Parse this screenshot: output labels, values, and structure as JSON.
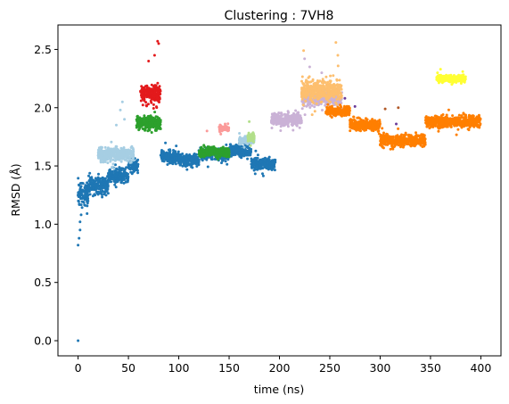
{
  "chart_data": {
    "type": "scatter",
    "title": "Clustering : 7VH8",
    "xlabel": "time (ns)",
    "ylabel": "RMSD (Å)",
    "xlim": [
      -20,
      420
    ],
    "ylim": [
      -0.13,
      2.71
    ],
    "xticks": [
      0,
      50,
      100,
      150,
      200,
      250,
      300,
      350,
      400
    ],
    "yticks": [
      0.0,
      0.5,
      1.0,
      1.5,
      2.0,
      2.5
    ],
    "ytick_labels": [
      "0.0",
      "0.5",
      "1.0",
      "1.5",
      "2.0",
      "2.5"
    ],
    "grid": false,
    "legend": "none",
    "marker_size": 1.5,
    "series": [
      {
        "color": "#1f77b4",
        "segments": [
          [
            0,
            10,
            1.25,
            0.15
          ],
          [
            10,
            30,
            1.33,
            0.12
          ],
          [
            30,
            50,
            1.42,
            0.1
          ],
          [
            50,
            60,
            1.5,
            0.1
          ],
          [
            82,
            100,
            1.58,
            0.09
          ],
          [
            100,
            120,
            1.55,
            0.08
          ],
          [
            120,
            150,
            1.6,
            0.08
          ],
          [
            150,
            172,
            1.63,
            0.08
          ],
          [
            172,
            196,
            1.52,
            0.08
          ]
        ],
        "outliers": [
          [
            0,
            0.0
          ],
          [
            0,
            0.82
          ],
          [
            1,
            0.88
          ],
          [
            2,
            0.95
          ],
          [
            2,
            1.02
          ],
          [
            3,
            1.08
          ]
        ]
      },
      {
        "color": "#a6cee3",
        "segments": [
          [
            20,
            55,
            1.6,
            0.1
          ],
          [
            160,
            175,
            1.72,
            0.05
          ]
        ],
        "outliers": [
          [
            42,
            1.98
          ],
          [
            44,
            2.05
          ],
          [
            46,
            1.9
          ],
          [
            38,
            1.85
          ]
        ]
      },
      {
        "color": "#2ca02c",
        "segments": [
          [
            58,
            82,
            1.87,
            0.1
          ],
          [
            120,
            150,
            1.62,
            0.07
          ]
        ],
        "outliers": []
      },
      {
        "color": "#e31a1c",
        "segments": [
          [
            62,
            82,
            2.12,
            0.13
          ]
        ],
        "outliers": [
          [
            79,
            2.57
          ],
          [
            80,
            2.55
          ],
          [
            76,
            2.45
          ],
          [
            70,
            2.4
          ]
        ]
      },
      {
        "color": "#b2df8a",
        "segments": [
          [
            168,
            175,
            1.75,
            0.06
          ]
        ],
        "outliers": [
          [
            170,
            1.88
          ]
        ]
      },
      {
        "color": "#fb9a99",
        "segments": [
          [
            140,
            150,
            1.82,
            0.04
          ]
        ],
        "outliers": [
          [
            128,
            1.8
          ],
          [
            146,
            1.86
          ]
        ]
      },
      {
        "color": "#cab2d6",
        "segments": [
          [
            192,
            222,
            1.9,
            0.09
          ],
          [
            222,
            262,
            2.08,
            0.1
          ]
        ],
        "outliers": [
          [
            225,
            2.42
          ],
          [
            230,
            2.35
          ],
          [
            242,
            2.3
          ]
        ]
      },
      {
        "color": "#fdbf6f",
        "segments": [
          [
            222,
            262,
            2.15,
            0.14
          ]
        ],
        "outliers": [
          [
            224,
            2.49
          ],
          [
            256,
            2.56
          ],
          [
            258,
            2.45
          ]
        ]
      },
      {
        "color": "#ff7f00",
        "segments": [
          [
            246,
            270,
            1.97,
            0.07
          ],
          [
            270,
            300,
            1.85,
            0.08
          ],
          [
            300,
            345,
            1.72,
            0.08
          ],
          [
            345,
            400,
            1.88,
            0.08
          ]
        ],
        "outliers": []
      },
      {
        "color": "#ffff33",
        "segments": [
          [
            356,
            385,
            2.25,
            0.05
          ]
        ],
        "outliers": [
          [
            357,
            2.3
          ],
          [
            360,
            2.33
          ],
          [
            378,
            2.28
          ],
          [
            382,
            2.31
          ]
        ]
      },
      {
        "color": "#6a3d9a",
        "segments": [],
        "outliers": [
          [
            265,
            2.08
          ],
          [
            275,
            2.01
          ],
          [
            316,
            1.86
          ]
        ]
      },
      {
        "color": "#b15928",
        "segments": [],
        "outliers": [
          [
            305,
            1.99
          ],
          [
            318,
            2.0
          ]
        ]
      }
    ]
  }
}
